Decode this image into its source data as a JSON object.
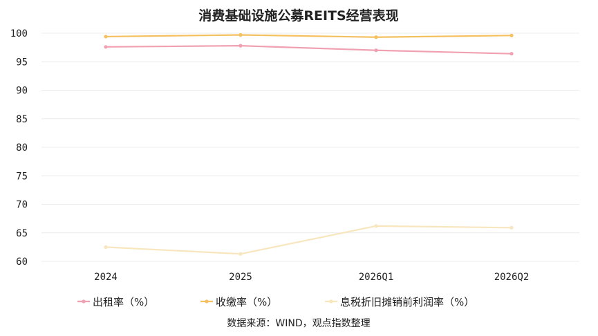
{
  "chart_data": {
    "type": "line",
    "title": "消费基础设施公募REITS经营表现",
    "xlabel": "",
    "ylabel": "",
    "categories": [
      "2024",
      "2025",
      "2026Q1",
      "2026Q2"
    ],
    "ylim": [
      60,
      100
    ],
    "yticks": [
      60,
      65,
      70,
      75,
      80,
      85,
      90,
      95,
      100
    ],
    "grid": true,
    "legend_position": "bottom",
    "series": [
      {
        "name": "出租率（%）",
        "color": "#f0a0b0",
        "values": [
          97.6,
          97.8,
          97.0,
          96.4
        ]
      },
      {
        "name": "收缴率（%）",
        "color": "#f5c060",
        "values": [
          99.4,
          99.7,
          99.3,
          99.6
        ]
      },
      {
        "name": "息税折旧摊销前利润率（%）",
        "color": "#f8e6be",
        "values": [
          62.5,
          61.3,
          66.2,
          65.9
        ]
      }
    ],
    "source": "数据来源：WIND，观点指数整理"
  }
}
